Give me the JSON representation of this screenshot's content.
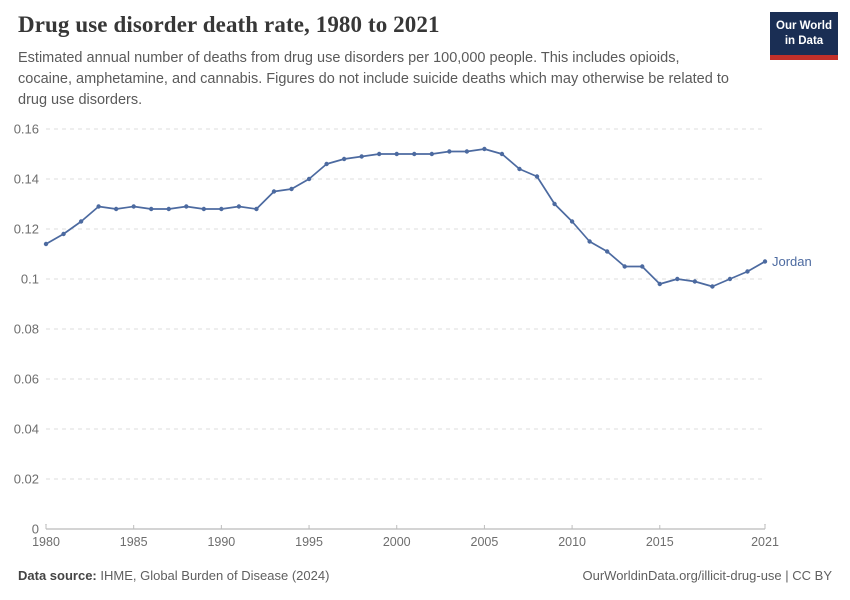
{
  "header": {
    "title": "Drug use disorder death rate, 1980 to 2021",
    "subtitle_lines": [
      "Estimated annual number of deaths from drug use disorders per 100,000 people. This includes opioids,",
      "cocaine, amphetamine, and cannabis. Figures do not include suicide deaths which may otherwise be related to",
      "drug use disorders."
    ],
    "logo": {
      "line1": "Our World",
      "line2": "in Data",
      "bg_color": "#1a2e54",
      "bar_color": "#c2302a"
    }
  },
  "chart_data": {
    "type": "line",
    "title": "Drug use disorder death rate, 1980 to 2021",
    "xlabel": "",
    "ylabel": "",
    "xlim": [
      1980,
      2021
    ],
    "ylim": [
      0,
      0.16
    ],
    "grid": "horizontal-dashed",
    "legend_position": "end-of-line-label",
    "x_ticks": [
      1980,
      1985,
      1990,
      1995,
      2000,
      2005,
      2010,
      2015,
      2021
    ],
    "y_ticks": [
      0,
      0.02,
      0.04,
      0.06,
      0.08,
      0.1,
      0.12,
      0.14,
      0.16
    ],
    "series": [
      {
        "name": "Jordan",
        "color": "#4c6aa0",
        "x": [
          1980,
          1981,
          1982,
          1983,
          1984,
          1985,
          1986,
          1987,
          1988,
          1989,
          1990,
          1991,
          1992,
          1993,
          1994,
          1995,
          1996,
          1997,
          1998,
          1999,
          2000,
          2001,
          2002,
          2003,
          2004,
          2005,
          2006,
          2007,
          2008,
          2009,
          2010,
          2011,
          2012,
          2013,
          2014,
          2015,
          2016,
          2017,
          2018,
          2019,
          2020,
          2021
        ],
        "values": [
          0.114,
          0.118,
          0.123,
          0.129,
          0.128,
          0.129,
          0.128,
          0.128,
          0.129,
          0.128,
          0.128,
          0.129,
          0.128,
          0.135,
          0.136,
          0.14,
          0.146,
          0.148,
          0.149,
          0.15,
          0.15,
          0.15,
          0.15,
          0.151,
          0.151,
          0.152,
          0.15,
          0.144,
          0.141,
          0.13,
          0.123,
          0.115,
          0.111,
          0.105,
          0.105,
          0.098,
          0.1,
          0.099,
          0.097,
          0.1,
          0.103,
          0.107
        ]
      }
    ]
  },
  "colors": {
    "grid": "#dcdcdc",
    "axis": "#a8a8a8",
    "tick": "#bdbdbd",
    "tick_label": "#6e6e6e",
    "line": "#4c6aa0"
  },
  "footer": {
    "source_label": "Data source:",
    "source_text": " IHME, Global Burden of Disease (2024)",
    "link_text": "OurWorldinData.org/illicit-drug-use | CC BY"
  }
}
